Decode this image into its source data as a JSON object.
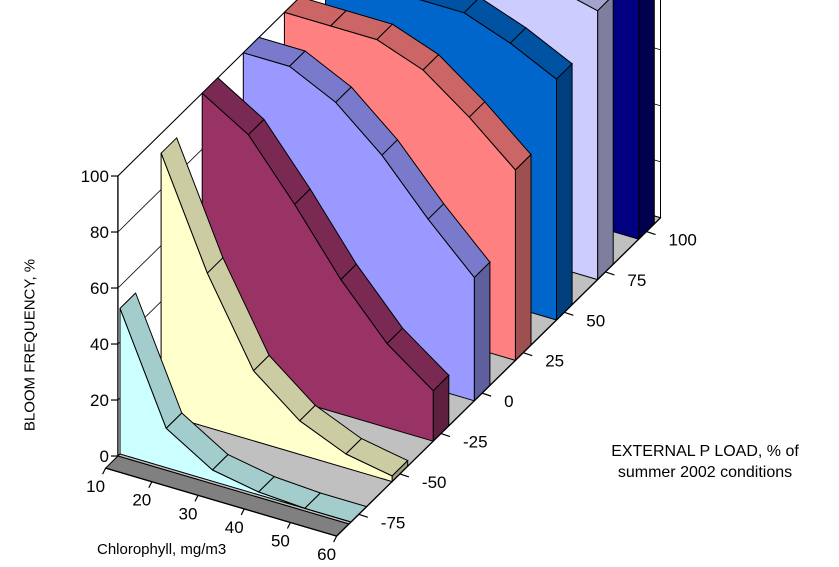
{
  "chart_data": {
    "type": "3d-ribbon",
    "xlabel": "Chlorophyll,  mg/m3",
    "ylabel": "BLOOM FREQUENCY, %",
    "zlabel_line1": "EXTERNAL P LOAD, % of",
    "zlabel_line2": "summer 2002 conditions",
    "x": [
      10,
      20,
      30,
      40,
      50,
      60
    ],
    "x_ticks": [
      "10",
      "20",
      "30",
      "40",
      "50",
      "60"
    ],
    "y_ticks": [
      "0",
      "20",
      "40",
      "60",
      "80",
      "100"
    ],
    "z_ticks": [
      "-75",
      "-50",
      "-25",
      "0",
      "25",
      "50",
      "75",
      "100"
    ],
    "ylim": [
      0,
      100
    ],
    "series": [
      {
        "name": "-75",
        "color": "#ccffff",
        "values": [
          52,
          14,
          4,
          1,
          0,
          0
        ]
      },
      {
        "name": "-50",
        "color": "#ffffcc",
        "values": [
          93,
          55,
          25,
          12,
          5,
          2
        ]
      },
      {
        "name": "-25",
        "color": "#993366",
        "values": [
          100,
          90,
          70,
          48,
          30,
          18
        ]
      },
      {
        "name": "0",
        "color": "#9999ff",
        "values": [
          100,
          100,
          92,
          78,
          60,
          44
        ]
      },
      {
        "name": "25",
        "color": "#ff8080",
        "values": [
          100,
          100,
          100,
          94,
          82,
          68
        ]
      },
      {
        "name": "50",
        "color": "#0066cc",
        "values": [
          100,
          100,
          100,
          100,
          94,
          86
        ]
      },
      {
        "name": "75",
        "color": "#ccccff",
        "values": [
          100,
          100,
          100,
          100,
          100,
          96
        ]
      },
      {
        "name": "100",
        "color": "#000080",
        "values": [
          100,
          100,
          100,
          100,
          100,
          100
        ]
      }
    ]
  }
}
